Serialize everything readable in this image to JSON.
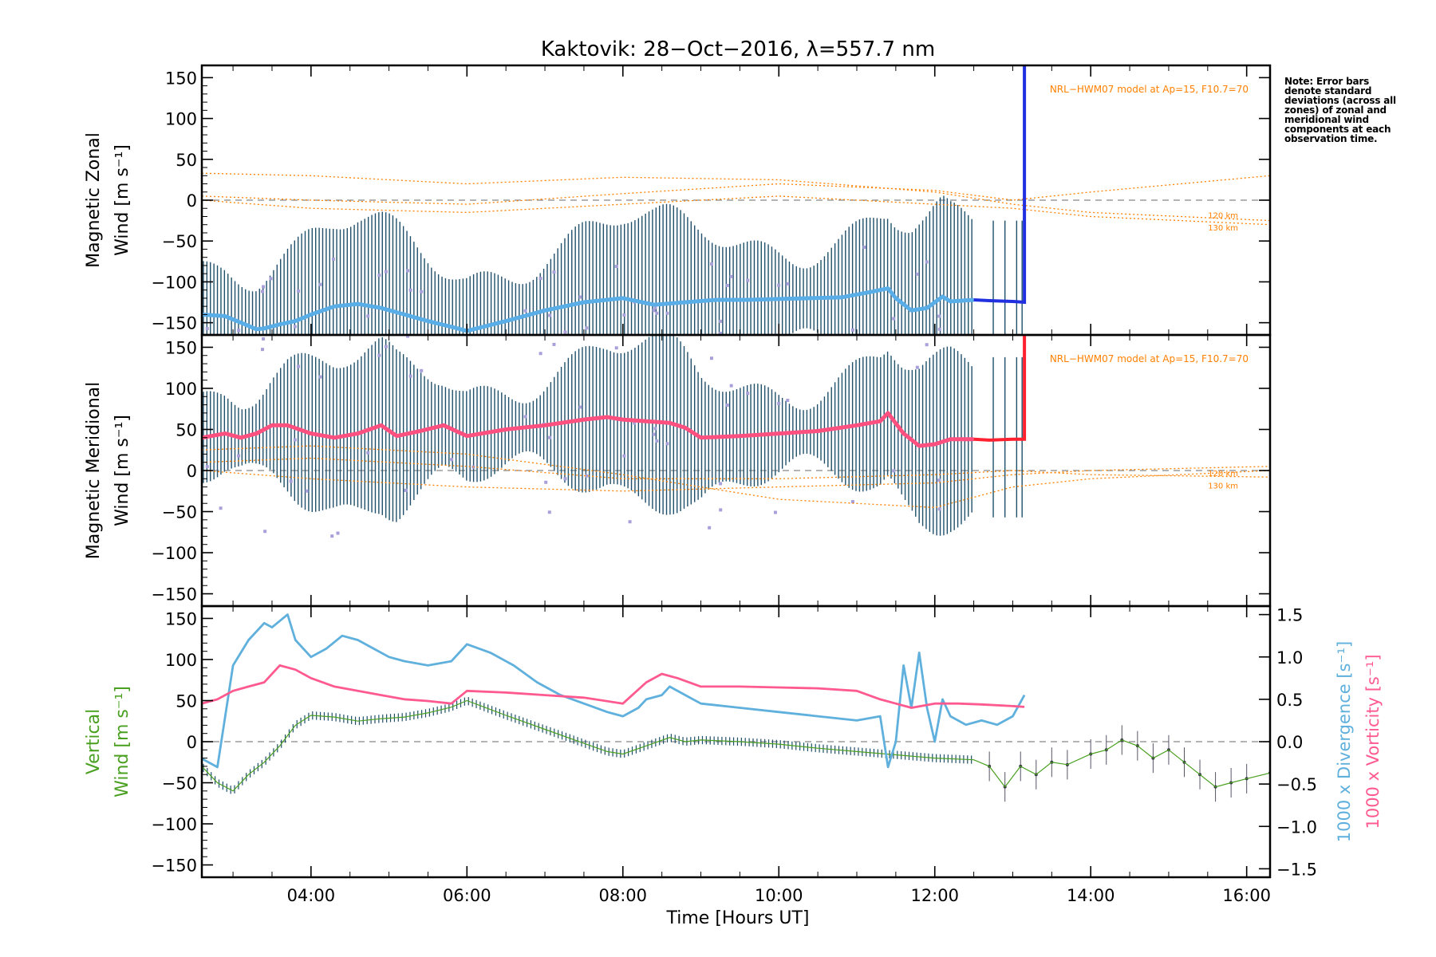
{
  "title": "Kaktovik: 28−Oct−2016, λ=557.7 nm",
  "note": "Note: Error bars denote standard deviations (across all zones) of zonal and meridional wind components at each observation time.",
  "xlabel": "Time [Hours UT]",
  "x_ticks": [
    "04:00",
    "06:00",
    "08:00",
    "10:00",
    "12:00",
    "14:00",
    "16:00"
  ],
  "y_ticks": [
    "150",
    "100",
    "50",
    "0",
    "−50",
    "−100",
    "−150"
  ],
  "colors": {
    "zonal_mean": "#5aaee8",
    "zonal_line": "#2030e0",
    "meridional_mean": "#ff5080",
    "meridional_line": "#ff2030",
    "errorbar": "#1f4f6a",
    "hwm": "#ff8000",
    "divergence": "#5fb0dd",
    "vorticity": "#ff5a90",
    "vertical": "#4aa020",
    "scatter": "#a8a0d8"
  },
  "chart_data": [
    {
      "type": "line",
      "panel": "zonal",
      "ylabel_line1": "Magnetic Zonal",
      "ylabel_line2": "Wind [m s⁻¹]",
      "xlim": [
        2.6,
        16.3
      ],
      "ylim": [
        -165,
        165
      ],
      "model_label": "NRL−HWM07 model at Ap=15, F10.7=70",
      "model_alt_labels": [
        "120 km",
        "130 km"
      ],
      "series": [
        {
          "values_x": [
            2.6,
            2.9,
            3.1,
            3.3,
            3.4,
            3.6,
            3.8,
            4.0,
            4.3,
            4.6,
            4.9,
            5.2,
            5.5,
            5.8,
            6.0,
            6.5,
            7.0,
            7.5,
            8.0,
            8.4,
            8.8,
            9.2,
            9.6,
            10.0,
            10.4,
            10.8,
            11.2,
            11.4,
            11.5,
            11.7,
            11.9,
            12.1,
            12.2,
            12.5
          ],
          "values_y": [
            -140,
            -142,
            -150,
            -158,
            -157,
            -152,
            -148,
            -140,
            -130,
            -127,
            -132,
            -140,
            -148,
            -155,
            -160,
            -148,
            -135,
            -125,
            -120,
            -128,
            -125,
            -122,
            -122,
            -121,
            -120,
            -119,
            -112,
            -108,
            -120,
            -135,
            -132,
            -118,
            -124,
            -122
          ]
        },
        {
          "values_x": [
            12.5,
            12.7,
            13.0,
            13.15,
            13.15
          ],
          "values_y": [
            -122,
            -123,
            -124,
            -125,
            165
          ]
        }
      ],
      "model_curves": [
        {
          "values_x": [
            2.6,
            4.0,
            6.0,
            8.0,
            10.0,
            12.0,
            13.0,
            14.0,
            16.3
          ],
          "values_y": [
            33,
            30,
            20,
            28,
            25,
            10,
            -5,
            -15,
            -25
          ]
        },
        {
          "values_x": [
            2.6,
            4.0,
            6.0,
            8.0,
            10.0,
            12.0,
            13.0,
            14.0,
            16.3
          ],
          "values_y": [
            5,
            0,
            -5,
            8,
            20,
            12,
            0,
            10,
            30
          ]
        },
        {
          "values_x": [
            2.6,
            4.0,
            6.0,
            8.0,
            10.0,
            12.0,
            13.0,
            14.0,
            16.3
          ],
          "values_y": [
            0,
            -10,
            -15,
            -5,
            5,
            -5,
            -10,
            -20,
            -30
          ]
        }
      ]
    },
    {
      "type": "line",
      "panel": "meridional",
      "ylabel_line1": "Magnetic Meridional",
      "ylabel_line2": "Wind [m s⁻¹]",
      "xlim": [
        2.6,
        16.3
      ],
      "ylim": [
        -165,
        165
      ],
      "model_label": "NRL−HWM07 model at Ap=15, F10.7=70",
      "model_alt_labels": [
        "120 km",
        "130 km"
      ],
      "series": [
        {
          "values_x": [
            2.6,
            2.9,
            3.1,
            3.3,
            3.5,
            3.7,
            4.0,
            4.3,
            4.6,
            4.9,
            5.1,
            5.4,
            5.7,
            6.0,
            6.5,
            7.0,
            7.5,
            7.8,
            8.0,
            8.3,
            8.6,
            8.8,
            9.0,
            9.5,
            10.0,
            10.5,
            11.0,
            11.3,
            11.4,
            11.6,
            11.8,
            12.0,
            12.2,
            12.5
          ],
          "values_y": [
            40,
            45,
            40,
            45,
            55,
            55,
            45,
            40,
            45,
            55,
            42,
            48,
            55,
            42,
            50,
            55,
            62,
            65,
            62,
            60,
            58,
            52,
            40,
            42,
            45,
            48,
            55,
            60,
            70,
            45,
            30,
            32,
            38,
            38
          ]
        },
        {
          "values_x": [
            12.5,
            12.7,
            13.0,
            13.15,
            13.15
          ],
          "values_y": [
            38,
            37,
            38,
            38,
            165
          ]
        }
      ],
      "model_curves": [
        {
          "values_x": [
            2.6,
            4.0,
            6.0,
            8.0,
            10.0,
            12.0,
            13.0,
            14.0,
            16.3
          ],
          "values_y": [
            25,
            30,
            20,
            -5,
            -35,
            -45,
            -20,
            -10,
            0
          ]
        },
        {
          "values_x": [
            2.6,
            4.0,
            6.0,
            8.0,
            10.0,
            12.0,
            13.0,
            14.0,
            16.3
          ],
          "values_y": [
            10,
            15,
            5,
            -10,
            -10,
            -5,
            0,
            -5,
            -8
          ]
        },
        {
          "values_x": [
            2.6,
            4.0,
            6.0,
            8.0,
            10.0,
            12.0,
            13.0,
            14.0,
            16.3
          ],
          "values_y": [
            0,
            -10,
            -20,
            -25,
            -20,
            -15,
            -5,
            0,
            5
          ]
        }
      ]
    },
    {
      "type": "line",
      "panel": "vertical",
      "ylabel_line1": "Vertical",
      "ylabel_line2": "Wind [m s⁻¹]",
      "ylabel_right1": "1000 x Divergence [s⁻¹]",
      "ylabel_right2": "1000 x Vorticity [s⁻¹]",
      "xlim": [
        2.6,
        16.3
      ],
      "ylim": [
        -165,
        165
      ],
      "y2lim": [
        -1.6,
        1.6
      ],
      "y2_ticks": [
        "1.5",
        "1.0",
        "0.5",
        "0.0",
        "−0.5",
        "−1.0",
        "−1.5"
      ],
      "series": [
        {
          "name": "vertical",
          "values_x": [
            2.6,
            2.8,
            3.0,
            3.2,
            3.4,
            3.6,
            3.8,
            4.0,
            4.3,
            4.6,
            4.9,
            5.2,
            5.5,
            5.8,
            6.0,
            6.5,
            7.0,
            7.5,
            7.8,
            8.0,
            8.3,
            8.6,
            8.8,
            9.0,
            9.5,
            10.0,
            10.5,
            11.0,
            11.5,
            12.0,
            12.5,
            12.7,
            12.9,
            13.1,
            13.3,
            13.5,
            13.7,
            14.0,
            14.2,
            14.4,
            14.6,
            14.8,
            15.0,
            15.2,
            15.4,
            15.6,
            15.8,
            16.0,
            16.3
          ],
          "values_y": [
            -30,
            -50,
            -60,
            -40,
            -25,
            -5,
            20,
            32,
            30,
            25,
            28,
            30,
            35,
            42,
            50,
            32,
            15,
            -2,
            -12,
            -15,
            -5,
            5,
            0,
            2,
            0,
            -3,
            -8,
            -12,
            -16,
            -20,
            -22,
            -30,
            -55,
            -30,
            -40,
            -25,
            -28,
            -15,
            -10,
            2,
            -5,
            -20,
            -10,
            -25,
            -40,
            -55,
            -50,
            -45,
            -38
          ]
        },
        {
          "name": "divergence",
          "values_x": [
            2.6,
            2.8,
            3.0,
            3.2,
            3.4,
            3.5,
            3.7,
            3.8,
            4.0,
            4.2,
            4.4,
            4.6,
            4.8,
            5.0,
            5.2,
            5.5,
            5.8,
            6.0,
            6.3,
            6.6,
            6.9,
            7.2,
            7.5,
            7.8,
            8.0,
            8.2,
            8.3,
            8.5,
            8.6,
            8.8,
            9.0,
            9.5,
            10.0,
            10.5,
            11.0,
            11.3,
            11.4,
            11.5,
            11.6,
            11.7,
            11.8,
            11.9,
            12.0,
            12.1,
            12.2,
            12.4,
            12.6,
            12.8,
            13.0,
            13.15
          ],
          "values_y": [
            -0.2,
            -0.3,
            0.9,
            1.2,
            1.4,
            1.35,
            1.5,
            1.2,
            1.0,
            1.1,
            1.25,
            1.2,
            1.1,
            1.0,
            0.95,
            0.9,
            0.95,
            1.15,
            1.05,
            0.9,
            0.7,
            0.55,
            0.45,
            0.35,
            0.3,
            0.4,
            0.5,
            0.55,
            0.65,
            0.55,
            0.45,
            0.4,
            0.35,
            0.3,
            0.25,
            0.3,
            -0.3,
            0.0,
            0.9,
            0.4,
            1.05,
            0.4,
            0.0,
            0.5,
            0.3,
            0.2,
            0.25,
            0.2,
            0.3,
            0.55
          ]
        },
        {
          "name": "vorticity",
          "values_x": [
            2.6,
            2.8,
            3.0,
            3.2,
            3.4,
            3.6,
            3.8,
            4.0,
            4.3,
            4.6,
            4.9,
            5.2,
            5.5,
            5.8,
            6.0,
            6.5,
            7.0,
            7.5,
            8.0,
            8.3,
            8.5,
            8.7,
            9.0,
            9.5,
            10.0,
            10.5,
            11.0,
            11.3,
            11.5,
            11.7,
            12.0,
            12.3,
            12.6,
            13.0,
            13.15
          ],
          "values_y": [
            0.45,
            0.5,
            0.6,
            0.65,
            0.7,
            0.9,
            0.85,
            0.75,
            0.65,
            0.6,
            0.55,
            0.5,
            0.48,
            0.45,
            0.6,
            0.58,
            0.55,
            0.52,
            0.45,
            0.7,
            0.8,
            0.75,
            0.65,
            0.65,
            0.64,
            0.63,
            0.6,
            0.5,
            0.45,
            0.4,
            0.45,
            0.45,
            0.44,
            0.42,
            0.41
          ]
        }
      ]
    }
  ]
}
